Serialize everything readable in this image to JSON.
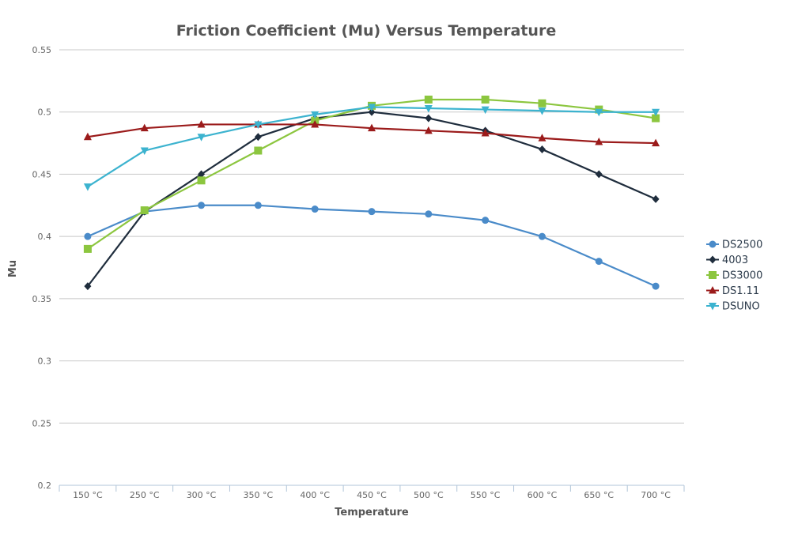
{
  "chart_data": {
    "type": "line",
    "title": "Friction Coefficient (Mu) Versus Temperature",
    "xlabel": "Temperature",
    "ylabel": "Mu",
    "categories": [
      "150 °C",
      "250 °C",
      "300 °C",
      "350 °C",
      "400 °C",
      "450 °C",
      "500 °C",
      "550 °C",
      "600 °C",
      "650 °C",
      "700 °C"
    ],
    "ylim": [
      0.2,
      0.55
    ],
    "yticks": [
      "0.2",
      "0.25",
      "0.3",
      "0.35",
      "0.4",
      "0.45",
      "0.5",
      "0.55"
    ],
    "grid": true,
    "legend_position": "right",
    "series": [
      {
        "name": "DS2500",
        "color": "#4a8bc9",
        "marker": "circle",
        "values": [
          0.4,
          0.42,
          0.425,
          0.425,
          0.422,
          0.42,
          0.418,
          0.413,
          0.4,
          0.38,
          0.36
        ]
      },
      {
        "name": "4003",
        "color": "#1f2d3d",
        "marker": "diamond",
        "values": [
          0.36,
          0.42,
          0.45,
          0.48,
          0.495,
          0.5,
          0.495,
          0.485,
          0.47,
          0.45,
          0.43
        ]
      },
      {
        "name": "DS3000",
        "color": "#8cc63f",
        "marker": "square",
        "values": [
          0.39,
          0.421,
          0.445,
          0.469,
          0.493,
          0.505,
          0.51,
          0.51,
          0.507,
          0.502,
          0.495
        ]
      },
      {
        "name": "DS1.11",
        "color": "#9b1b1b",
        "marker": "triangle",
        "values": [
          0.48,
          0.487,
          0.49,
          0.49,
          0.49,
          0.487,
          0.485,
          0.483,
          0.479,
          0.476,
          0.475
        ]
      },
      {
        "name": "DSUNO",
        "color": "#3cb3cf",
        "marker": "triangle-down",
        "values": [
          0.44,
          0.469,
          0.48,
          0.49,
          0.498,
          0.504,
          0.503,
          0.502,
          0.501,
          0.5,
          0.5
        ]
      }
    ]
  }
}
